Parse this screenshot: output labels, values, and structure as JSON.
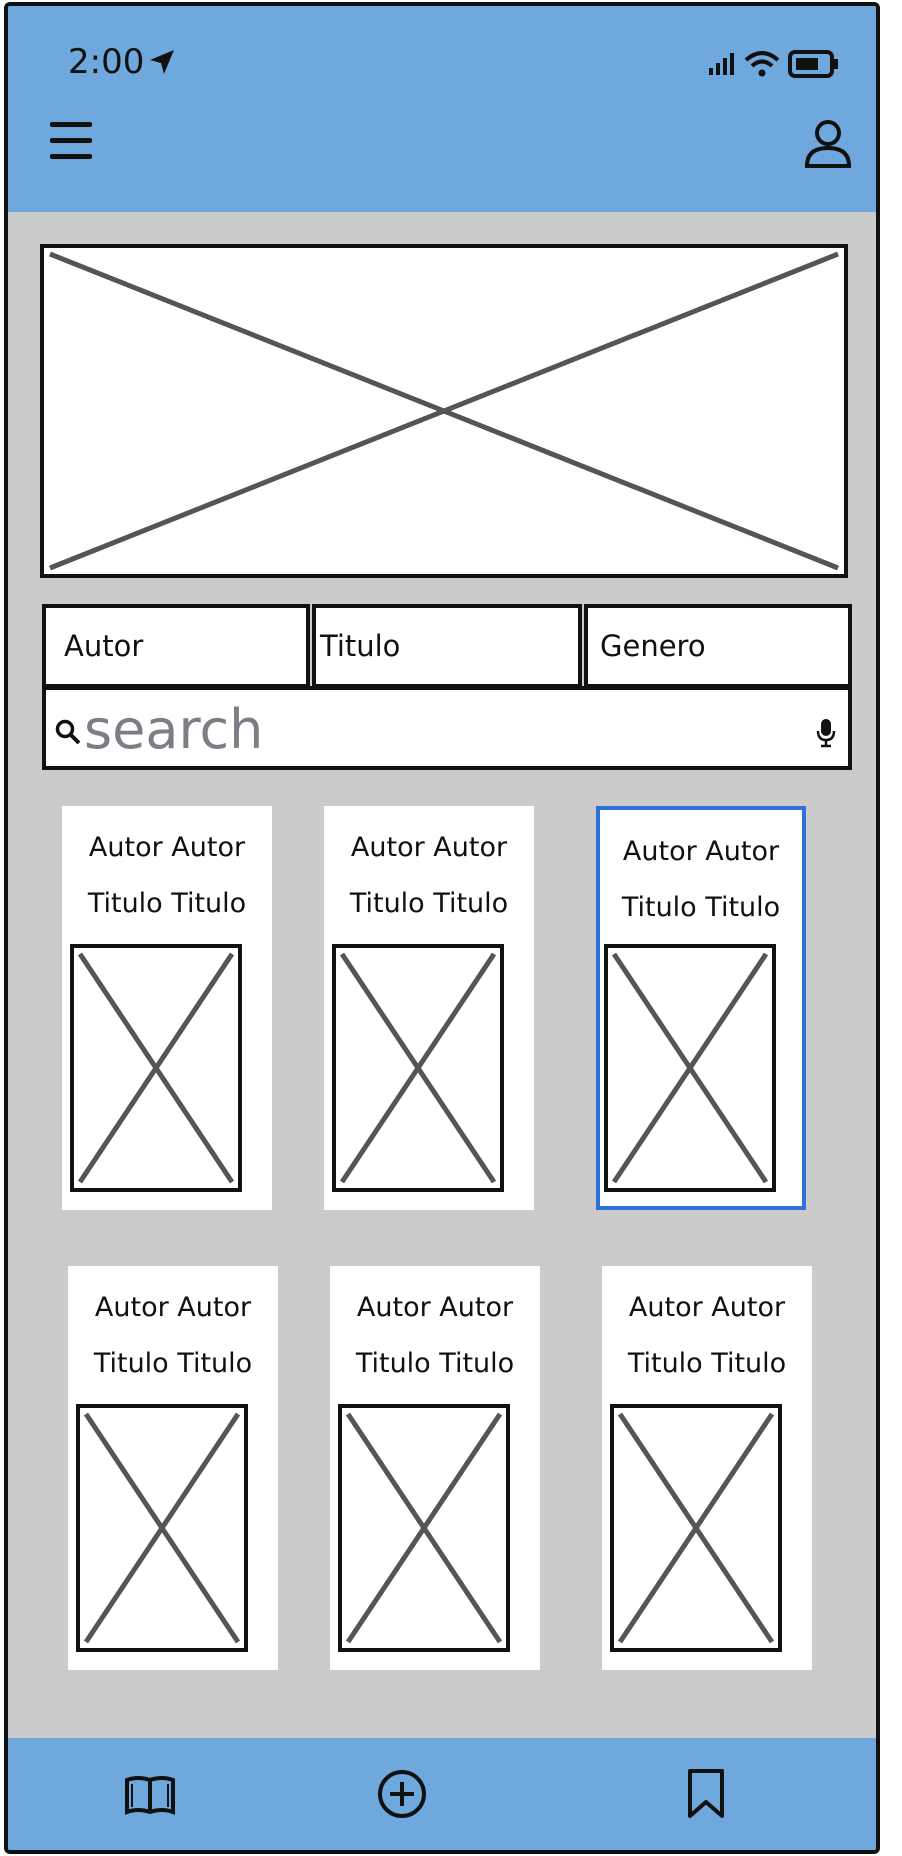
{
  "status_bar": {
    "time": "2:00"
  },
  "filters": {
    "author": "Autor",
    "title": "Titulo",
    "genre": "Genero"
  },
  "search": {
    "placeholder": "search"
  },
  "books": [
    {
      "author": "Autor Autor",
      "title": "Titulo Titulo",
      "selected": false
    },
    {
      "author": "Autor Autor",
      "title": "Titulo Titulo",
      "selected": false
    },
    {
      "author": "Autor Autor",
      "title": "Titulo Titulo",
      "selected": true
    },
    {
      "author": "Autor Autor",
      "title": "Titulo Titulo",
      "selected": false
    },
    {
      "author": "Autor Autor",
      "title": "Titulo Titulo",
      "selected": false
    },
    {
      "author": "Autor Autor",
      "title": "Titulo Titulo",
      "selected": false
    }
  ],
  "colors": {
    "bar": "#6fa8dc",
    "background": "#cbcbcb",
    "selected_border": "#2f6fdb",
    "placeholder_text": "#7d7d85"
  },
  "icons": {
    "status": [
      "location-arrow-icon",
      "signal-icon",
      "wifi-icon",
      "battery-icon"
    ],
    "header": [
      "menu-icon",
      "user-icon"
    ],
    "nav": [
      "book-icon",
      "add-circle-icon",
      "bookmark-icon"
    ]
  }
}
